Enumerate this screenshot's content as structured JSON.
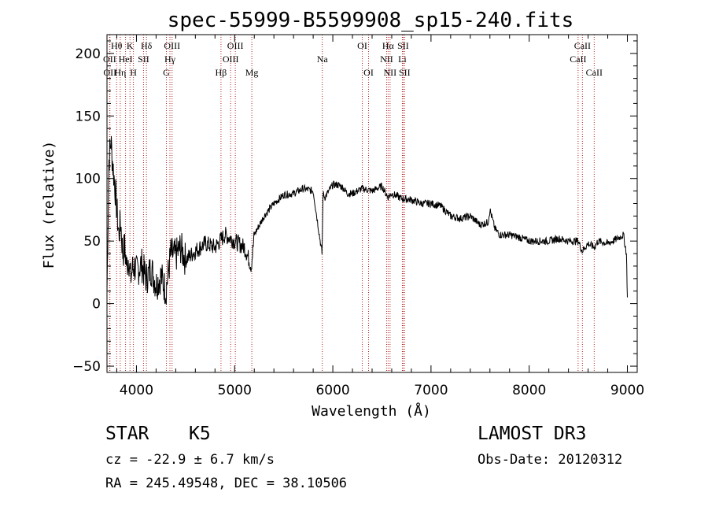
{
  "colors": {
    "line_marker": "#b22222",
    "spectrum": "#000000",
    "axes": "#000000"
  },
  "chart_data": {
    "type": "line",
    "title": "spec-55999-B5599908_sp15-240.fits",
    "xlabel": "Wavelength (Å)",
    "ylabel": "Flux (relative)",
    "xlim": [
      3700,
      9100
    ],
    "ylim": [
      -55,
      215
    ],
    "xticks": [
      4000,
      5000,
      6000,
      7000,
      8000,
      9000
    ],
    "yticks": [
      -50,
      0,
      50,
      100,
      150,
      200
    ],
    "series": [
      {
        "name": "spectrum",
        "x": [
          3700,
          3720,
          3740,
          3760,
          3780,
          3800,
          3820,
          3840,
          3860,
          3880,
          3900,
          3920,
          3940,
          3960,
          3980,
          4000,
          4050,
          4100,
          4150,
          4200,
          4250,
          4300,
          4350,
          4400,
          4450,
          4500,
          4600,
          4700,
          4800,
          4900,
          5000,
          5100,
          5170,
          5200,
          5300,
          5400,
          5500,
          5600,
          5700,
          5800,
          5890,
          5900,
          5920,
          6000,
          6050,
          6100,
          6150,
          6200,
          6300,
          6400,
          6500,
          6560,
          6600,
          6700,
          6800,
          6900,
          7000,
          7100,
          7200,
          7300,
          7400,
          7500,
          7580,
          7600,
          7650,
          7700,
          7800,
          7900,
          8000,
          8100,
          8200,
          8300,
          8400,
          8500,
          8540,
          8600,
          8662,
          8700,
          8800,
          8900,
          8960,
          8990,
          9000
        ],
        "y": [
          10,
          115,
          130,
          110,
          95,
          75,
          55,
          65,
          40,
          45,
          30,
          38,
          20,
          28,
          30,
          25,
          32,
          20,
          28,
          15,
          22,
          10,
          40,
          38,
          45,
          35,
          42,
          48,
          45,
          55,
          50,
          45,
          30,
          55,
          70,
          80,
          87,
          88,
          92,
          90,
          40,
          88,
          85,
          95,
          95,
          93,
          88,
          88,
          92,
          90,
          94,
          85,
          88,
          84,
          83,
          80,
          80,
          78,
          70,
          68,
          70,
          63,
          65,
          75,
          60,
          55,
          55,
          53,
          50,
          50,
          50,
          52,
          50,
          50,
          42,
          48,
          45,
          50,
          48,
          52,
          55,
          40,
          5
        ]
      }
    ],
    "line_markers": [
      {
        "label": "Hθ",
        "x": 3798,
        "row": 1
      },
      {
        "label": "OII",
        "x": 3727,
        "row": 2
      },
      {
        "label": "OII",
        "x": 3730,
        "row": 3
      },
      {
        "label": "Hη",
        "x": 3835,
        "row": 3
      },
      {
        "label": "HeI",
        "x": 3889,
        "row": 2
      },
      {
        "label": "K",
        "x": 3934,
        "row": 1
      },
      {
        "label": "H",
        "x": 3969,
        "row": 3
      },
      {
        "label": "SII",
        "x": 4072,
        "row": 2
      },
      {
        "label": "Hδ",
        "x": 4102,
        "row": 1
      },
      {
        "label": "G",
        "x": 4305,
        "row": 3
      },
      {
        "label": "Hγ",
        "x": 4341,
        "row": 2
      },
      {
        "label": "OIII",
        "x": 4363,
        "row": 1
      },
      {
        "label": "Hβ",
        "x": 4861,
        "row": 3
      },
      {
        "label": "OIII",
        "x": 4959,
        "row": 2
      },
      {
        "label": "OIII",
        "x": 5007,
        "row": 1
      },
      {
        "label": "Mg",
        "x": 5175,
        "row": 3
      },
      {
        "label": "Na",
        "x": 5893,
        "row": 2
      },
      {
        "label": "OI",
        "x": 6300,
        "row": 1
      },
      {
        "label": "OI",
        "x": 6364,
        "row": 3
      },
      {
        "label": "NII",
        "x": 6548,
        "row": 2
      },
      {
        "label": "Hα",
        "x": 6563,
        "row": 1
      },
      {
        "label": "NII",
        "x": 6583,
        "row": 3
      },
      {
        "label": "Li",
        "x": 6708,
        "row": 2
      },
      {
        "label": "SII",
        "x": 6716,
        "row": 1
      },
      {
        "label": "SII",
        "x": 6731,
        "row": 3
      },
      {
        "label": "CaII",
        "x": 8498,
        "row": 2
      },
      {
        "label": "CaII",
        "x": 8542,
        "row": 1
      },
      {
        "label": "CaII",
        "x": 8662,
        "row": 3
      }
    ]
  },
  "info": {
    "object_class": "STAR",
    "subclass": "K5",
    "survey": "LAMOST DR3",
    "redshift": "cz = -22.9 ± 6.7 km/s",
    "obs_date": "Obs-Date: 20120312",
    "coords": "RA = 245.49548, DEC =  38.10506"
  }
}
